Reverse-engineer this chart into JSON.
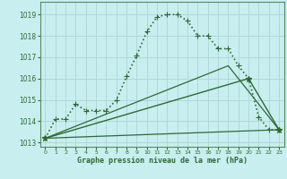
{
  "title": "Graphe pression niveau de la mer (hPa)",
  "bg_color": "#c8eef0",
  "grid_color": "#b0d8da",
  "line_color": "#2d6a2d",
  "spine_color": "#5a8a5a",
  "xlim": [
    -0.5,
    23.5
  ],
  "ylim": [
    1012.8,
    1019.6
  ],
  "yticks": [
    1013,
    1014,
    1015,
    1016,
    1017,
    1018,
    1019
  ],
  "xticks": [
    0,
    1,
    2,
    3,
    4,
    5,
    6,
    7,
    8,
    9,
    10,
    11,
    12,
    13,
    14,
    15,
    16,
    17,
    18,
    19,
    20,
    21,
    22,
    23
  ],
  "series": [
    {
      "x": [
        0,
        1,
        2,
        3,
        4,
        5,
        6,
        7,
        8,
        9,
        10,
        11,
        12,
        13,
        14,
        15,
        16,
        17,
        18,
        19,
        20,
        21,
        22,
        23
      ],
      "y": [
        1013.2,
        1014.1,
        1014.1,
        1014.8,
        1014.5,
        1014.5,
        1014.5,
        1015.0,
        1016.1,
        1017.1,
        1018.2,
        1018.9,
        1019.0,
        1019.0,
        1018.7,
        1018.0,
        1018.0,
        1017.4,
        1017.4,
        1016.6,
        1016.0,
        1014.2,
        1013.6,
        1013.6
      ],
      "marker": "+",
      "markersize": 4,
      "lw": 1.2,
      "linestyle": ":"
    },
    {
      "x": [
        0,
        20,
        23
      ],
      "y": [
        1013.2,
        1016.0,
        1013.6
      ],
      "marker": "*",
      "markersize": 5,
      "lw": 1.0,
      "linestyle": "-"
    },
    {
      "x": [
        0,
        18,
        23
      ],
      "y": [
        1013.2,
        1016.6,
        1013.6
      ],
      "marker": null,
      "markersize": 0,
      "lw": 0.9,
      "linestyle": "-"
    },
    {
      "x": [
        0,
        23
      ],
      "y": [
        1013.2,
        1013.6
      ],
      "marker": null,
      "markersize": 0,
      "lw": 0.9,
      "linestyle": "-"
    }
  ]
}
